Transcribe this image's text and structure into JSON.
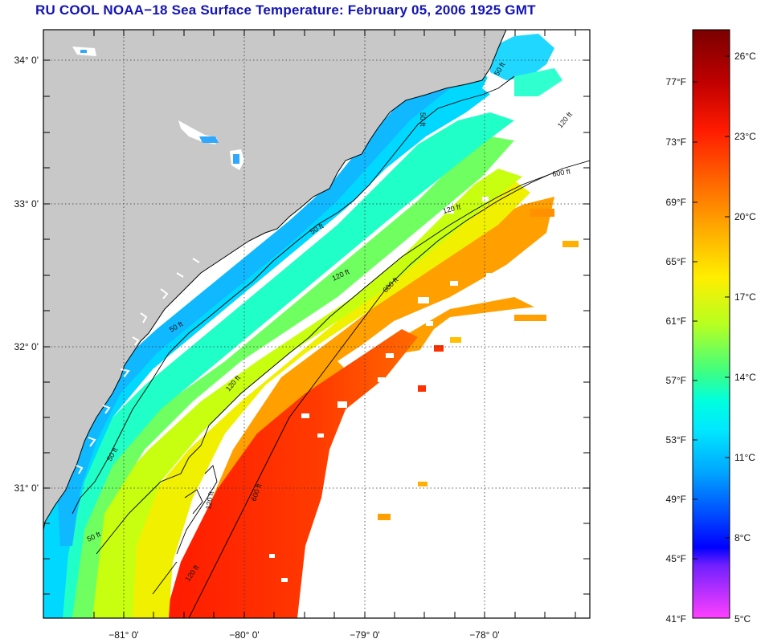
{
  "title": "RU COOL  NOAA−18  Sea Surface Temperature:  February 05, 2006 1925 GMT",
  "map": {
    "lat_labels": [
      "34° 0'",
      "33° 0'",
      "32° 0'",
      "31° 0'"
    ],
    "lon_labels": [
      "−81° 0'",
      "−80° 0'",
      "−79° 0'",
      "−78° 0'"
    ],
    "isobath_labels": [
      "50 ft",
      "50 ft",
      "50 ft",
      "50 ft",
      "50 ft",
      "50 ft",
      "120 ft",
      "120 ft",
      "120 ft",
      "120 ft",
      "120 ft",
      "120 ft",
      "600 ft",
      "600 ft",
      "600 ft"
    ],
    "colors": {
      "land": "#c8c8c8",
      "cloud": "#ffffff",
      "coastline": "#000000"
    }
  },
  "colorbar": {
    "fahrenheit_labels": [
      "77°F",
      "73°F",
      "69°F",
      "65°F",
      "61°F",
      "57°F",
      "53°F",
      "49°F",
      "45°F",
      "41°F"
    ],
    "celsius_labels": [
      "26°C",
      "23°C",
      "20°C",
      "17°C",
      "14°C",
      "11°C",
      "8°C",
      "5°C"
    ],
    "gradient_colors": [
      "#7a0000",
      "#c80000",
      "#ff1a00",
      "#ff6a00",
      "#ffb400",
      "#ffff00",
      "#a0ff30",
      "#30ff90",
      "#00ffff",
      "#00a0ff",
      "#0040ff",
      "#0000ff",
      "#9020ff",
      "#ff40ff"
    ]
  }
}
